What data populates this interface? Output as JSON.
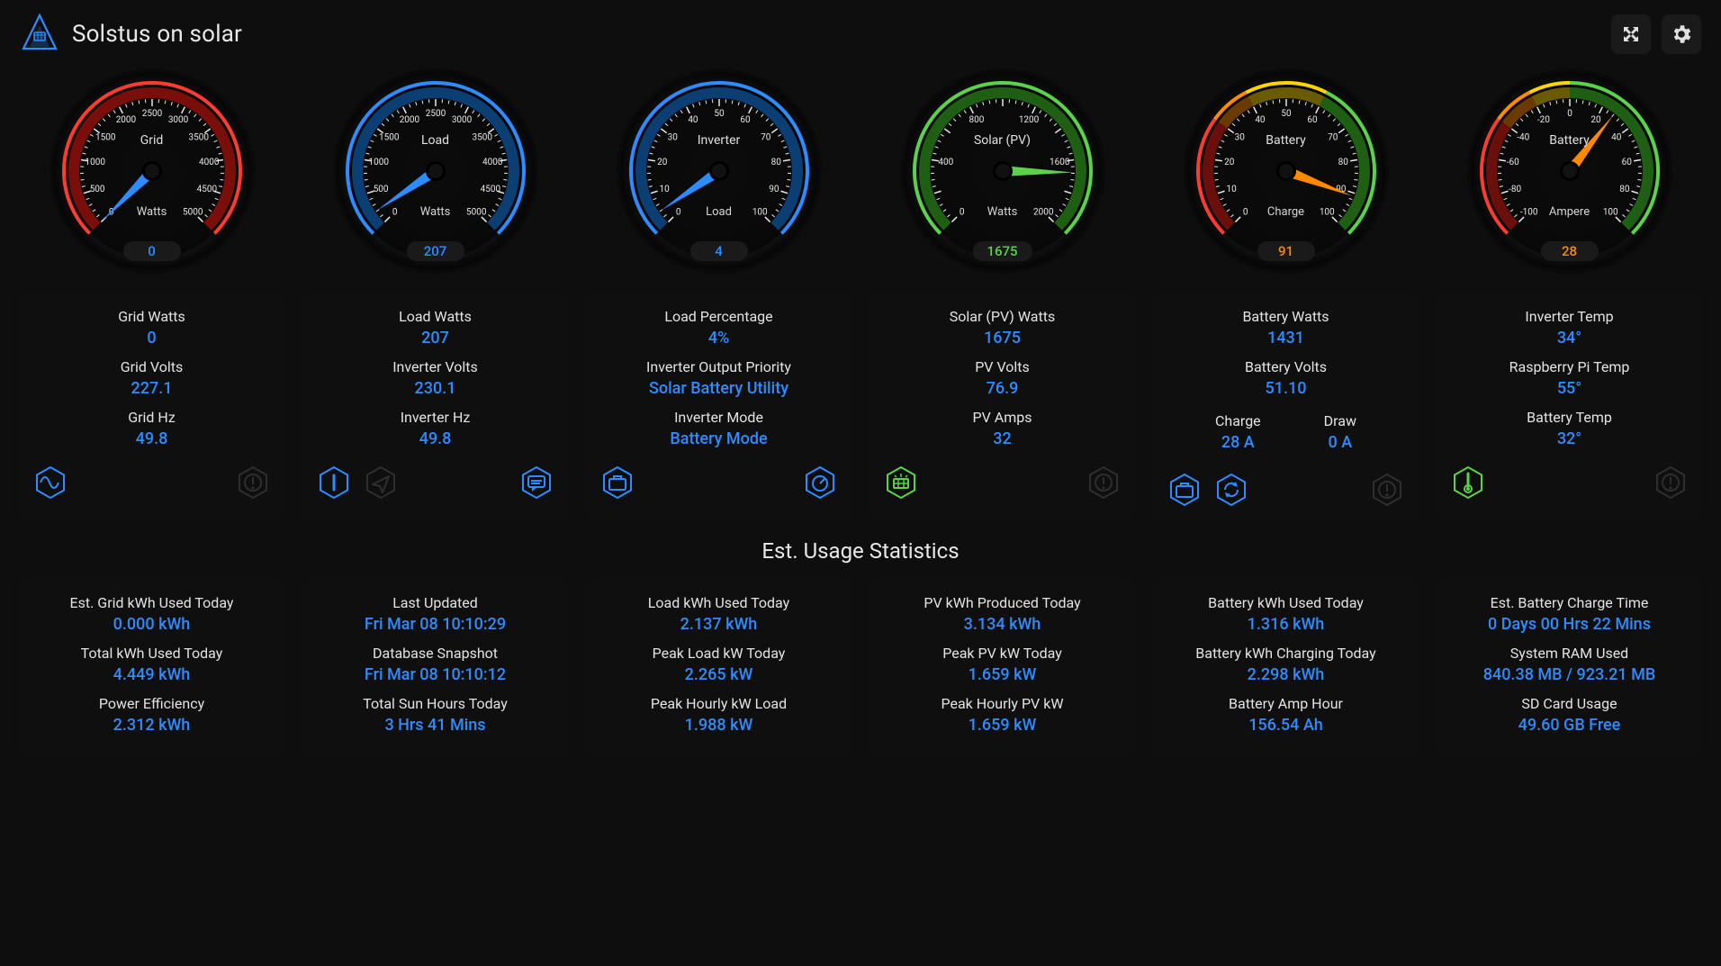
{
  "app": {
    "title": "Solstus on solar"
  },
  "colors": {
    "blue": "#2d8cff",
    "green": "#5ad24a",
    "red": "#ff3b30",
    "orange": "#ff8a00",
    "needle_default": "#2d8cff"
  },
  "gauges": [
    {
      "id": "grid",
      "title": "Grid",
      "sub": "Watts",
      "value": 0,
      "value_text": "0",
      "value_color": "#2d8cff",
      "min": 0,
      "max": 5000,
      "major_step": 500,
      "zones": [
        {
          "from": 0,
          "to": 5000,
          "color_outer": "#ff3b30",
          "color_inner": "#7a0e0a"
        }
      ],
      "needle_color": "#2d8cff"
    },
    {
      "id": "load",
      "title": "Load",
      "sub": "Watts",
      "value": 207,
      "value_text": "207",
      "value_color": "#2d8cff",
      "min": 0,
      "max": 5000,
      "major_step": 500,
      "zones": [
        {
          "from": 0,
          "to": 5000,
          "color_outer": "#2d8cff",
          "color_inner": "#0b3f74"
        }
      ],
      "needle_color": "#2d8cff"
    },
    {
      "id": "inverter",
      "title": "Inverter",
      "sub": "Load",
      "value": 4,
      "value_text": "4",
      "value_color": "#2d8cff",
      "min": 0,
      "max": 100,
      "major_step": 10,
      "zones": [
        {
          "from": 0,
          "to": 100,
          "color_outer": "#2d8cff",
          "color_inner": "#0b3f74"
        }
      ],
      "needle_color": "#2d8cff"
    },
    {
      "id": "solar",
      "title": "Solar (PV)",
      "sub": "Watts",
      "value": 1675,
      "value_text": "1675",
      "value_color": "#5ad24a",
      "min": 0,
      "max": 2000,
      "major_step": 200,
      "label_step": 400,
      "zones": [
        {
          "from": 0,
          "to": 2000,
          "color_outer": "#5ad24a",
          "color_inner": "#1e5f14"
        }
      ],
      "needle_color": "#5ad24a"
    },
    {
      "id": "batt_charge",
      "title": "Battery",
      "sub": "Charge",
      "value": 91,
      "value_text": "91",
      "value_color": "#ff8a00",
      "min": 0,
      "max": 100,
      "major_step": 10,
      "zones": [
        {
          "from": 0,
          "to": 30,
          "color_outer": "#ff3b30",
          "color_inner": "#6a0f0b"
        },
        {
          "from": 30,
          "to": 40,
          "color_outer": "#ff8a00",
          "color_inner": "#6a3a00"
        },
        {
          "from": 40,
          "to": 60,
          "color_outer": "#ffd400",
          "color_inner": "#6a5a00"
        },
        {
          "from": 60,
          "to": 100,
          "color_outer": "#5ad24a",
          "color_inner": "#1e5f14"
        }
      ],
      "needle_color": "#ff8a00"
    },
    {
      "id": "batt_amp",
      "title": "Battery",
      "sub": "Ampere",
      "value": 28,
      "value_text": "28",
      "value_color": "#ff8a00",
      "min": -100,
      "max": 100,
      "major_step": 20,
      "zones": [
        {
          "from": -100,
          "to": -40,
          "color_outer": "#ff3b30",
          "color_inner": "#6a0f0b"
        },
        {
          "from": -40,
          "to": -20,
          "color_outer": "#ff8a00",
          "color_inner": "#6a3a00"
        },
        {
          "from": -20,
          "to": 0,
          "color_outer": "#ffd400",
          "color_inner": "#6a5a00"
        },
        {
          "from": 0,
          "to": 100,
          "color_outer": "#5ad24a",
          "color_inner": "#1e5f14"
        }
      ],
      "needle_color": "#ff8a00"
    }
  ],
  "cards": [
    {
      "id": "grid_card",
      "rows": [
        {
          "label": "Grid Watts",
          "value": "0",
          "class": "val-blue"
        },
        {
          "label": "Grid Volts",
          "value": "227.1",
          "class": "val-blue"
        },
        {
          "label": "Grid Hz",
          "value": "49.8",
          "class": "val-blue"
        }
      ],
      "icons_left": [
        {
          "id": "wave",
          "name": "sine-wave-icon",
          "color": "#2d8cff"
        }
      ],
      "icons_right": [
        {
          "id": "alert",
          "name": "alert-icon",
          "color": "#2e2e2e"
        }
      ]
    },
    {
      "id": "load_card",
      "rows": [
        {
          "label": "Load Watts",
          "value": "207",
          "class": "val-blue"
        },
        {
          "label": "Inverter Volts",
          "value": "230.1",
          "class": "val-blue"
        },
        {
          "label": "Inverter Hz",
          "value": "49.8",
          "class": "val-blue"
        }
      ],
      "icons_left": [
        {
          "id": "info",
          "name": "info-icon",
          "color": "#2d8cff"
        },
        {
          "id": "send",
          "name": "send-icon",
          "color": "#2e2e2e"
        }
      ],
      "icons_right": [
        {
          "id": "chat",
          "name": "chat-icon",
          "color": "#2d8cff"
        }
      ]
    },
    {
      "id": "inverter_card",
      "rows": [
        {
          "label": "Load Percentage",
          "value": "4%",
          "class": "val-blue"
        },
        {
          "label": "Inverter Output Priority",
          "value": "Solar Battery Utility",
          "class": "val-text"
        },
        {
          "label": "Inverter Mode",
          "value": "Battery Mode",
          "class": "val-text"
        }
      ],
      "icons_left": [
        {
          "id": "briefcase",
          "name": "briefcase-icon",
          "color": "#2d8cff"
        }
      ],
      "icons_right": [
        {
          "id": "gauge",
          "name": "gauge-icon",
          "color": "#2d8cff"
        }
      ]
    },
    {
      "id": "pv_card",
      "rows": [
        {
          "label": "Solar (PV) Watts",
          "value": "1675",
          "class": "val-blue"
        },
        {
          "label": "PV Volts",
          "value": "76.9",
          "class": "val-blue"
        },
        {
          "label": "PV Amps",
          "value": "32",
          "class": "val-blue"
        }
      ],
      "icons_left": [
        {
          "id": "solar",
          "name": "solar-panel-icon",
          "color": "#5ad24a"
        }
      ],
      "icons_right": [
        {
          "id": "alert",
          "name": "alert-icon",
          "color": "#2e2e2e"
        }
      ]
    },
    {
      "id": "batt_card",
      "rows": [
        {
          "label": "Battery Watts",
          "value": "1431",
          "class": "val-blue"
        },
        {
          "label": "Battery Volts",
          "value": "51.10",
          "class": "val-blue"
        }
      ],
      "dual": {
        "a_label": "Charge",
        "a_value": "28 A",
        "b_label": "Draw",
        "b_value": "0 A",
        "class": "val-blue"
      },
      "icons_left": [
        {
          "id": "briefcase",
          "name": "briefcase-icon",
          "color": "#2d8cff"
        },
        {
          "id": "sync",
          "name": "sync-icon",
          "color": "#2d8cff"
        }
      ],
      "icons_right": [
        {
          "id": "alert",
          "name": "alert-icon",
          "color": "#2e2e2e"
        }
      ]
    },
    {
      "id": "temp_card",
      "rows": [
        {
          "label": "Inverter Temp",
          "value": "34°",
          "class": "val-blue"
        },
        {
          "label": "Raspberry Pi Temp",
          "value": "55°",
          "class": "val-blue"
        },
        {
          "label": "Battery Temp",
          "value": "32°",
          "class": "val-blue"
        }
      ],
      "icons_left": [
        {
          "id": "thermo",
          "name": "thermometer-icon",
          "color": "#5ad24a"
        }
      ],
      "icons_right": [
        {
          "id": "alert",
          "name": "alert-icon",
          "color": "#2e2e2e"
        }
      ]
    }
  ],
  "section_title": "Est. Usage Statistics",
  "stats": [
    [
      {
        "label": "Est. Grid kWh Used Today",
        "value": "0.000 kWh"
      },
      {
        "label": "Total kWh Used Today",
        "value": "4.449 kWh"
      },
      {
        "label": "Power Efficiency",
        "value": "2.312 kWh"
      }
    ],
    [
      {
        "label": "Last Updated",
        "value": "Fri Mar 08 10:10:29"
      },
      {
        "label": "Database Snapshot",
        "value": "Fri Mar 08 10:10:12"
      },
      {
        "label": "Total Sun Hours Today",
        "value": "3 Hrs 41 Mins"
      }
    ],
    [
      {
        "label": "Load kWh Used Today",
        "value": "2.137 kWh"
      },
      {
        "label": "Peak Load kW Today",
        "value": "2.265 kW"
      },
      {
        "label": "Peak Hourly kW Load",
        "value": "1.988 kW"
      }
    ],
    [
      {
        "label": "PV kWh Produced Today",
        "value": "3.134 kWh"
      },
      {
        "label": "Peak PV kW Today",
        "value": "1.659 kW"
      },
      {
        "label": "Peak Hourly PV kW",
        "value": "1.659 kW"
      }
    ],
    [
      {
        "label": "Battery kWh Used Today",
        "value": "1.316 kWh"
      },
      {
        "label": "Battery kWh Charging Today",
        "value": "2.298 kWh"
      },
      {
        "label": "Battery Amp Hour",
        "value": "156.54 Ah"
      }
    ],
    [
      {
        "label": "Est. Battery Charge Time",
        "value": "0 Days 00 Hrs 22 Mins"
      },
      {
        "label": "System RAM Used",
        "value": "840.38 MB / 923.21 MB"
      },
      {
        "label": "SD Card Usage",
        "value": "49.60 GB Free"
      }
    ]
  ]
}
